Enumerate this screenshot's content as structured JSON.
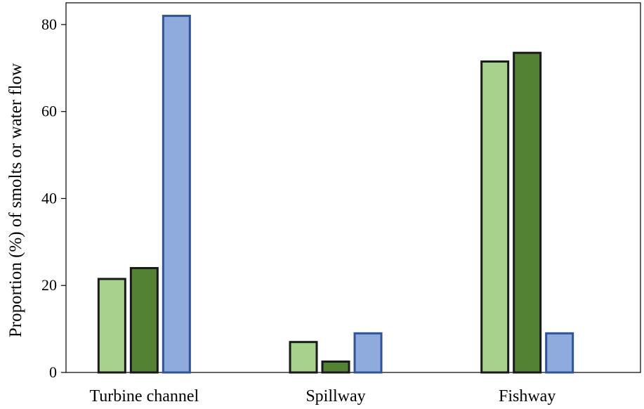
{
  "chart_data": {
    "type": "bar",
    "title": "",
    "xlabel": "",
    "ylabel": "Proportion (%) of smolts or water flow",
    "categories": [
      "Turbine channel",
      "Spillway",
      "Fishway"
    ],
    "series": [
      {
        "values": [
          21.5,
          7.0,
          71.5
        ],
        "color": "#a9d18e",
        "stroke": "#1a1a1a"
      },
      {
        "values": [
          24.0,
          2.5,
          73.5
        ],
        "color": "#548235",
        "stroke": "#1a1a1a"
      },
      {
        "values": [
          82.0,
          9.0,
          9.0
        ],
        "color": "#8faadc",
        "stroke": "#2f5597"
      }
    ],
    "ylim": [
      0,
      85
    ],
    "yticks": [
      0,
      20,
      40,
      60,
      80
    ],
    "ytick_labels": [
      "0",
      "20",
      "40",
      "60",
      "80"
    ],
    "grid": false,
    "legend": "none"
  }
}
